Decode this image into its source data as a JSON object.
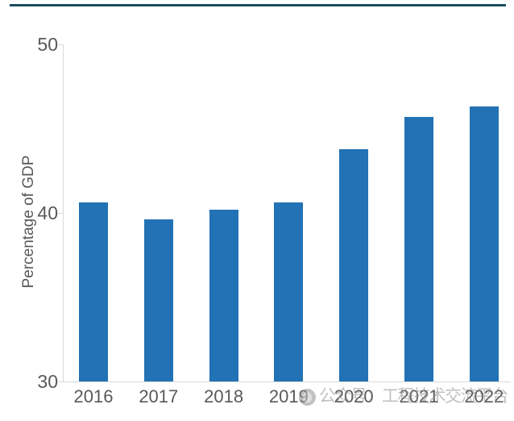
{
  "page": {
    "background": "#ffffff",
    "top_rule_color": "#1c4d61",
    "watermark": {
      "icon": "avatar-circle-icon",
      "text": "公众号：工程技术交流平台",
      "color": "#8f8f8f"
    }
  },
  "chart_data": {
    "type": "bar",
    "categories": [
      "2016",
      "2017",
      "2018",
      "2019",
      "2020",
      "2021",
      "2022"
    ],
    "values": [
      40.6,
      39.6,
      40.2,
      40.6,
      43.8,
      45.7,
      46.3
    ],
    "title": "",
    "xlabel": "",
    "ylabel": "Percentage of GDP",
    "ylim": [
      30,
      50
    ],
    "yticks": [
      30,
      40,
      50
    ],
    "grid": false,
    "legend": null,
    "bar_color": "#2272b5",
    "axis_text_color": "#595959",
    "axis_line_color": "#d9d9d9"
  }
}
